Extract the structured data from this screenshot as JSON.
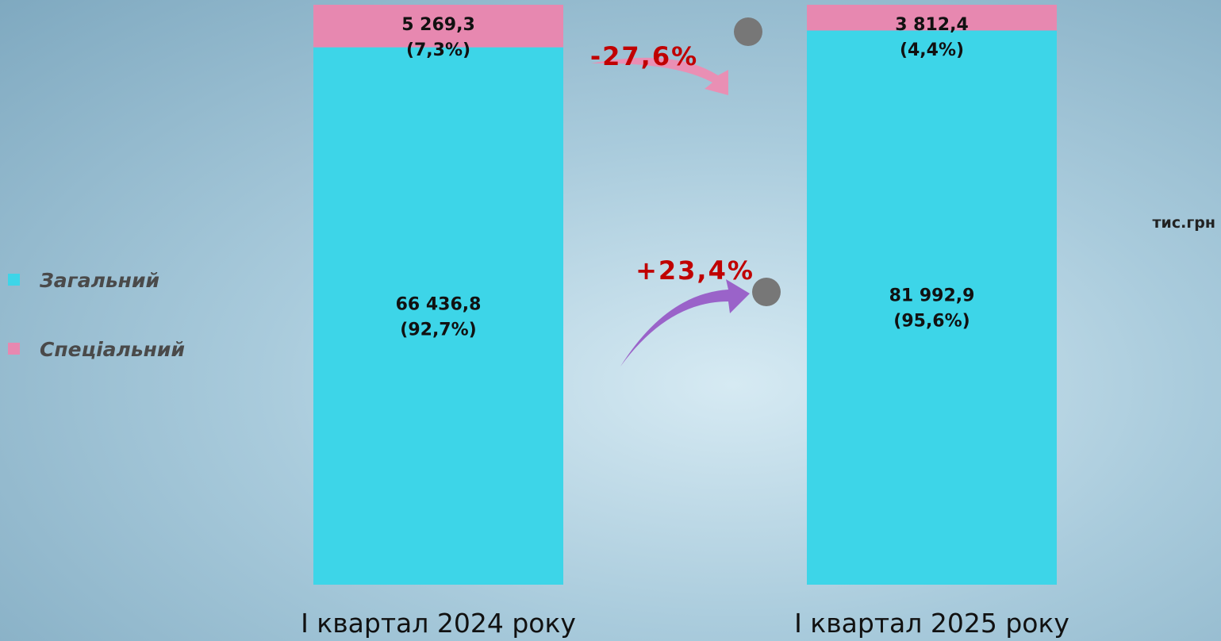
{
  "chart_data": {
    "type": "stacked_bar",
    "categories": [
      "І квартал 2024 року",
      "І квартал 2025 року"
    ],
    "series": [
      {
        "name": "Загальний",
        "color": "#3dd5e8",
        "values": [
          66436.8,
          81992.9
        ],
        "value_labels": [
          "66 436,8",
          "81 992,9"
        ],
        "percent_labels": [
          "(92,7%)",
          "(95,6%)"
        ]
      },
      {
        "name": "Спеціальний",
        "color": "#e788b0",
        "values": [
          5269.3,
          3812.4
        ],
        "value_labels": [
          "5 269,3",
          "3 812,4"
        ],
        "percent_labels": [
          "(7,3%)",
          "(4,4%)"
        ]
      }
    ],
    "annotations": [
      "+23,4%",
      "-27,6%"
    ],
    "unit_label": "тис.грн"
  }
}
